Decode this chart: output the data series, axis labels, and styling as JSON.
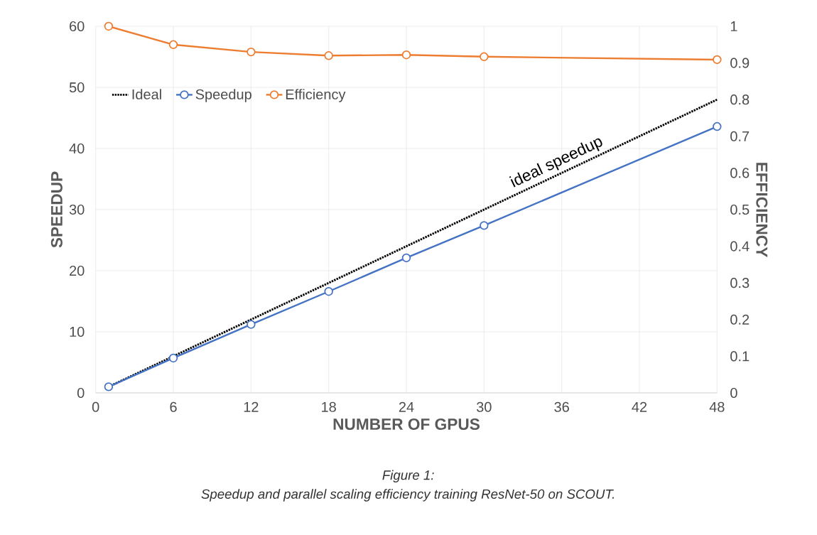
{
  "chart_data": {
    "type": "line",
    "xlabel": "NUMBER OF GPUS",
    "ylabel": "SPEEDUP",
    "y2label": "EFFICIENCY",
    "x": [
      1,
      6,
      12,
      18,
      24,
      30,
      48
    ],
    "series": [
      {
        "name": "Ideal",
        "color": "#000000",
        "marker": "none",
        "line_style": "dotted",
        "values": [
          1,
          6,
          12,
          18,
          24,
          30,
          48
        ]
      },
      {
        "name": "Speedup",
        "color": "#4472c4",
        "marker": "circle",
        "line_style": "solid",
        "values": [
          1,
          5.7,
          11.2,
          16.6,
          22.1,
          27.4,
          43.6
        ]
      },
      {
        "name": "Efficiency",
        "color": "#ed7d31",
        "marker": "circle",
        "line_style": "solid",
        "axis": "y2",
        "values": [
          1,
          0.95,
          0.93,
          0.92,
          0.922,
          0.917,
          0.909
        ]
      }
    ],
    "xlim": [
      0,
      48
    ],
    "xticks": [
      0,
      6,
      12,
      18,
      24,
      30,
      36,
      42,
      48
    ],
    "ylim": [
      0,
      60
    ],
    "yticks": [
      0,
      10,
      20,
      30,
      40,
      50,
      60
    ],
    "y2lim": [
      0,
      1
    ],
    "y2ticks": [
      0,
      0.1,
      0.2,
      0.3,
      0.4,
      0.5,
      0.6,
      0.7,
      0.8,
      0.9,
      1
    ],
    "grid": true,
    "legend": "top left",
    "annotations": [
      {
        "text": "ideal speedup",
        "x": 36,
        "y": 36
      },
      "Figure 1:",
      "Speedup and parallel scaling efficiency training ResNet-50 on SCOUT."
    ]
  }
}
